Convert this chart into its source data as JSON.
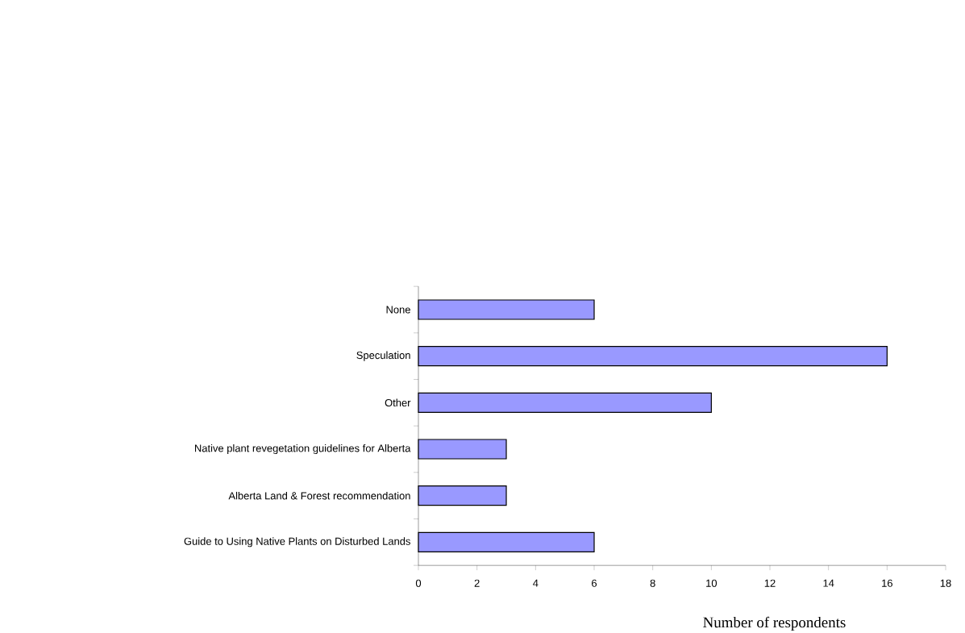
{
  "chart_data": {
    "type": "bar",
    "orientation": "horizontal",
    "categories": [
      "None",
      "Speculation",
      "Other",
      "Native plant revegetation guidelines for Alberta",
      "Alberta Land & Forest recommendation",
      "Guide to Using Native Plants on Disturbed Lands"
    ],
    "values": [
      6,
      16,
      10,
      3,
      3,
      6
    ],
    "color": "#9999ff",
    "xlim": [
      0,
      18
    ],
    "xticks": [
      0,
      2,
      4,
      6,
      8,
      10,
      12,
      14,
      16,
      18
    ],
    "xlabel": "Number of respondents"
  }
}
